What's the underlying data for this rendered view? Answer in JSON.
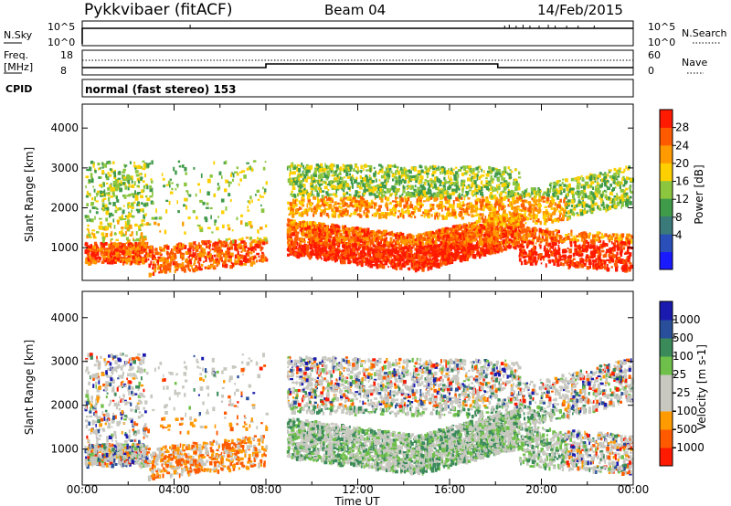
{
  "header": {
    "radar": "Pykkvibaer (fitACF)",
    "beam": "Beam 04",
    "date": "14/Feb/2015"
  },
  "status_panels": {
    "nsky_label": "N.Sky",
    "nsky_ticks": [
      "10^5",
      "10^0"
    ],
    "nsearch_label": "N.Search",
    "nsearch_ticks": [
      "10^5",
      "10^0"
    ],
    "freq_label_1": "Freq.",
    "freq_label_2": "[MHz]",
    "freq_ticks": [
      "18",
      "8"
    ],
    "nave_label": "Nave",
    "nave_ticks": [
      "60",
      "0"
    ],
    "cpid_label": "CPID",
    "cpid_text": "normal (fast stereo) 153"
  },
  "colors": {
    "power": [
      "#1a1aff",
      "#2a4fb8",
      "#3a7a7a",
      "#3f9a4a",
      "#8cc63f",
      "#ffd000",
      "#ff9a00",
      "#ff5a00",
      "#ff1a00"
    ],
    "velocity": [
      "#ff1a00",
      "#ff5a00",
      "#ff9a00",
      "#c8c8c0",
      "#c8c8c0",
      "#6fc04a",
      "#3a8a5a",
      "#2a4f9a",
      "#1a1aaf"
    ]
  },
  "chart_data": [
    {
      "type": "heatmap",
      "quantity": "Power",
      "xlabel": "Time UT",
      "ylabel": "Slant Range [km]",
      "x_ticks": [
        "00:00",
        "04:00",
        "08:00",
        "12:00",
        "16:00",
        "20:00",
        "00:00"
      ],
      "y_ticks": [
        "1000",
        "2000",
        "3000",
        "4000"
      ],
      "xlim_hours": [
        0,
        24
      ],
      "ylim_km": [
        180,
        4600
      ],
      "colorbar_label": "Power [dB]",
      "colorbar_ticks": [
        "28",
        "24",
        "20",
        "16",
        "12",
        "8",
        "4"
      ],
      "colorbar_range": [
        0,
        30
      ]
    },
    {
      "type": "heatmap",
      "quantity": "Velocity",
      "xlabel": "Time UT",
      "ylabel": "Slant Range [km]",
      "x_ticks": [
        "00:00",
        "04:00",
        "08:00",
        "12:00",
        "16:00",
        "20:00",
        "00:00"
      ],
      "y_ticks": [
        "1000",
        "2000",
        "3000",
        "4000"
      ],
      "xlim_hours": [
        0,
        24
      ],
      "ylim_km": [
        180,
        4600
      ],
      "colorbar_label": "Velocity [m s-1]",
      "colorbar_ticks": [
        "1000",
        "500",
        "100",
        "25",
        "-25",
        "-100",
        "-500",
        "-1000"
      ]
    }
  ]
}
